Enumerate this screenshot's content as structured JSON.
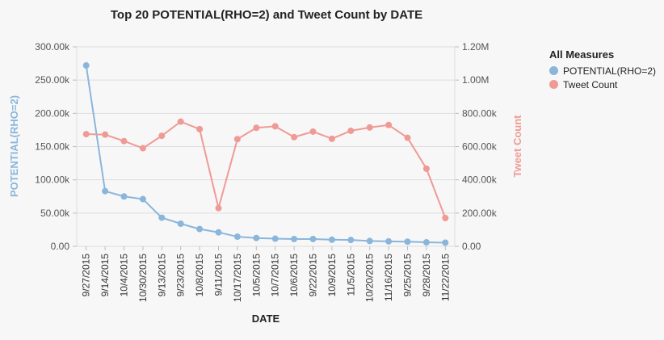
{
  "colors": {
    "potential": "#8ab6dc",
    "tweet": "#f09a95",
    "grid": "#dddddd",
    "axis_text": "#555555",
    "title_text": "#222222"
  },
  "legend": {
    "title": "All Measures",
    "items": [
      {
        "label": "POTENTIAL(RHO=2)",
        "color": "#8ab6dc"
      },
      {
        "label": "Tweet Count",
        "color": "#f09a95"
      }
    ]
  },
  "chart_data": {
    "type": "line",
    "title": "Top 20 POTENTIAL(RHO=2) and Tweet Count by DATE",
    "xlabel": "DATE",
    "ylabel_left": "POTENTIAL(RHO=2)",
    "ylabel_right": "Tweet Count",
    "grid": true,
    "legend_position": "right",
    "categories": [
      "9/27/2015",
      "9/14/2015",
      "10/4/2015",
      "10/30/2015",
      "9/13/2015",
      "9/23/2015",
      "10/8/2015",
      "9/11/2015",
      "10/17/2015",
      "10/5/2015",
      "10/7/2015",
      "10/6/2015",
      "9/22/2015",
      "10/9/2015",
      "11/5/2015",
      "10/20/2015",
      "11/16/2015",
      "9/25/2015",
      "9/28/2015",
      "11/22/2015"
    ],
    "y_left": {
      "range": [
        0,
        300000
      ],
      "ticks": [
        0,
        50000,
        100000,
        150000,
        200000,
        250000,
        300000
      ],
      "tick_labels": [
        "0.00",
        "50.00k",
        "100.00k",
        "150.00k",
        "200.00k",
        "250.00k",
        "300.00k"
      ]
    },
    "y_right": {
      "range": [
        0,
        1200000
      ],
      "ticks": [
        0,
        200000,
        400000,
        600000,
        800000,
        1000000,
        1200000
      ],
      "tick_labels": [
        "0.00",
        "200.00k",
        "400.00k",
        "600.00k",
        "800.00k",
        "1.00M",
        "1.20M"
      ]
    },
    "series": [
      {
        "name": "POTENTIAL(RHO=2)",
        "axis": "left",
        "color": "#8ab6dc",
        "values": [
          272000,
          83000,
          75000,
          71000,
          43000,
          34000,
          26000,
          21000,
          14500,
          12500,
          11500,
          11000,
          11000,
          10000,
          9500,
          8000,
          7500,
          7000,
          6000,
          5500
        ]
      },
      {
        "name": "Tweet Count",
        "axis": "right",
        "color": "#f09a95",
        "values": [
          675000,
          672000,
          633000,
          590000,
          665000,
          750000,
          705000,
          230000,
          645000,
          713000,
          722000,
          657000,
          690000,
          647000,
          695000,
          715000,
          730000,
          653000,
          467000,
          170000
        ]
      }
    ]
  }
}
